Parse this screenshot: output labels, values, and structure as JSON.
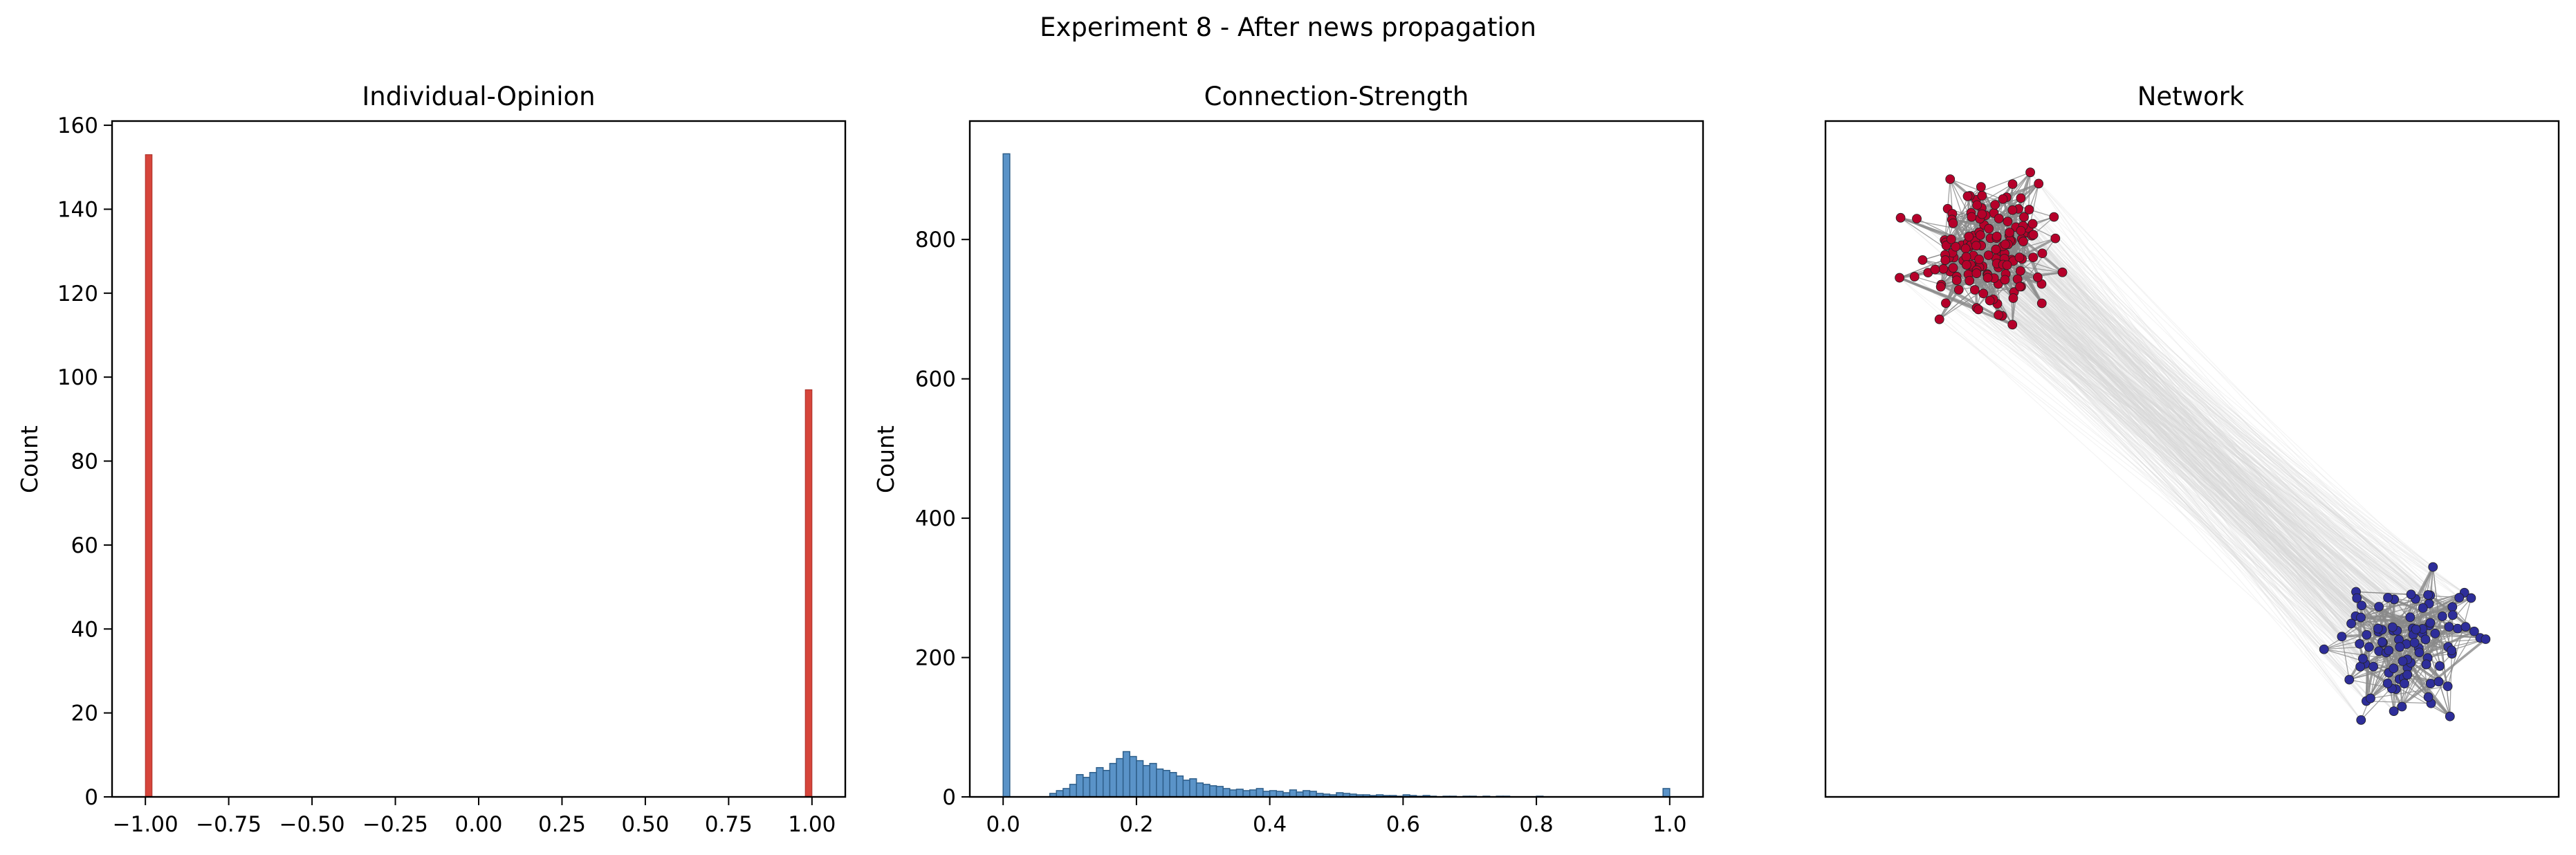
{
  "figure_title": "Experiment 8 - After news propagation",
  "colors": {
    "opinion_bar": "#d6453b",
    "strength_bar": "#5a93c8",
    "strength_bar_edge": "#2f5f8a",
    "red_node": "#b5002a",
    "blue_node": "#2e2e9a",
    "edge_gray": "#8a8a8a",
    "edge_light": "#d9d9d9"
  },
  "chart_data": [
    {
      "type": "bar",
      "title": "Individual-Opinion",
      "xlabel": "",
      "ylabel": "Count",
      "xlim": [
        -1.1,
        1.1
      ],
      "ylim": [
        0,
        161
      ],
      "xticks": [
        -1.0,
        -0.75,
        -0.5,
        -0.25,
        0.0,
        0.25,
        0.5,
        0.75,
        1.0
      ],
      "xtick_labels": [
        "−1.00",
        "−0.75",
        "−0.50",
        "−0.25",
        "0.00",
        "0.25",
        "0.50",
        "0.75",
        "1.00"
      ],
      "yticks": [
        0,
        20,
        40,
        60,
        80,
        100,
        120,
        140,
        160
      ],
      "ytick_labels": [
        "0",
        "20",
        "40",
        "60",
        "80",
        "100",
        "120",
        "140",
        "160"
      ],
      "bar_width": 0.02,
      "x": [
        -0.99,
        0.99
      ],
      "values": [
        153,
        97
      ]
    },
    {
      "type": "bar",
      "title": "Connection-Strength",
      "xlabel": "",
      "ylabel": "Count",
      "xlim": [
        -0.05,
        1.05
      ],
      "ylim": [
        0,
        970
      ],
      "xticks": [
        0.0,
        0.2,
        0.4,
        0.6,
        0.8,
        1.0
      ],
      "xtick_labels": [
        "0.0",
        "0.2",
        "0.4",
        "0.6",
        "0.8",
        "1.0"
      ],
      "yticks": [
        0,
        200,
        400,
        600,
        800
      ],
      "ytick_labels": [
        "0",
        "200",
        "400",
        "600",
        "800"
      ],
      "bin_width": 0.01,
      "bin_start": 0.0,
      "values": [
        923,
        0,
        0,
        0,
        0,
        0,
        0,
        5,
        9,
        12,
        18,
        32,
        28,
        35,
        42,
        38,
        48,
        55,
        65,
        58,
        52,
        45,
        48,
        40,
        38,
        35,
        30,
        24,
        26,
        20,
        18,
        16,
        15,
        12,
        10,
        11,
        9,
        10,
        12,
        8,
        9,
        8,
        6,
        10,
        7,
        9,
        8,
        5,
        4,
        3,
        6,
        5,
        4,
        3,
        3,
        2,
        3,
        2,
        2,
        1,
        3,
        2,
        1,
        2,
        1,
        0,
        1,
        1,
        0,
        1,
        1,
        0,
        1,
        0,
        1,
        1,
        0,
        0,
        0,
        0,
        1,
        0,
        0,
        0,
        0,
        0,
        0,
        0,
        0,
        0,
        0,
        0,
        0,
        0,
        0,
        0,
        0,
        0,
        0,
        12
      ]
    },
    {
      "type": "network",
      "title": "Network",
      "clusters": [
        {
          "name": "opinion -1",
          "node_count": 153,
          "color": "#b5002a",
          "placement": "top-left"
        },
        {
          "name": "opinion 1",
          "node_count": 97,
          "color": "#2e2e9a",
          "placement": "bottom-right"
        }
      ]
    }
  ]
}
